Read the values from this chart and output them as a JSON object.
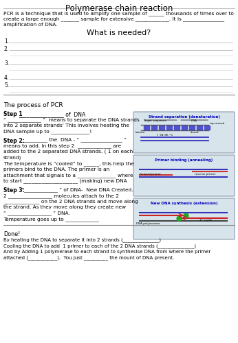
{
  "title": "Polymerase chain reaction",
  "intro_line1": "PCR is a technique that is used to amplify one sample of ______ thousands of times over to",
  "intro_line2": "create a large enough _______ sample for extensive _____________. It is ________________",
  "intro_line3": "amplification of DNA.",
  "what_needed_title": "What is needed?",
  "numbered_items": [
    "1.",
    "2.",
    "3.",
    "4.",
    "5."
  ],
  "section2_title": "The process of PCR",
  "step1_bold": "Step 1",
  "step1_rest": "_________________ of  DNA",
  "step1_lines": [
    "“ _____________ ”  means to separate the DNA strands",
    "into 2 separate strands’ This involves heating the",
    "DNA sample up to _______________!"
  ],
  "step2_bold": "Step 2:",
  "step2_rest": " __________ the  DNA - “ ________________ ”",
  "step2_lines": [
    "means to add. In this step 2  _____________ are",
    "added to the 2 separated DNA strands. ( 1 on each",
    "strand)",
    "The temperature is “cooled” to ______, this help the",
    "primers bind to the DNA. The primer is an",
    "attachment that signals to a _______________ where",
    "to start _____________________ (making) new DNA"
  ],
  "step3_bold": "Step 3:",
  "step3_rest": " “_____________ ” of DNA-  New DNA Created.",
  "step3_lines": [
    "2 _________________ molecules attach to the 2",
    "______________ on the 2 DNA strands and move along",
    "the strand. As they move along they create new",
    "“ _________________ ” DNA.",
    "Temperature goes up to _____________"
  ],
  "done_title": "Done!",
  "done_lines": [
    "By heating the DNA to separate it into 2 strands (_______________)",
    "Cooling the DNA to add  1 primer to each of the 2 DNA strands (_______________)",
    "And by Adding 1 polymerase to each strand to synthesise DNA from where the primer",
    "attached (____________).  You just __________ the mount of DNA present."
  ],
  "box1_title": "Strand separation (denaturation)",
  "box2_title": "Primer binding (annealing)",
  "box3_title": "New DNA synthesis (extension)",
  "bg_color": "#ffffff",
  "box_bg": "#d8e4ec",
  "box_border": "#8899aa",
  "title_color": "#000000",
  "box_title_color": "#0000bb",
  "line_color": "#aaaaaa",
  "text_color": "#000000"
}
